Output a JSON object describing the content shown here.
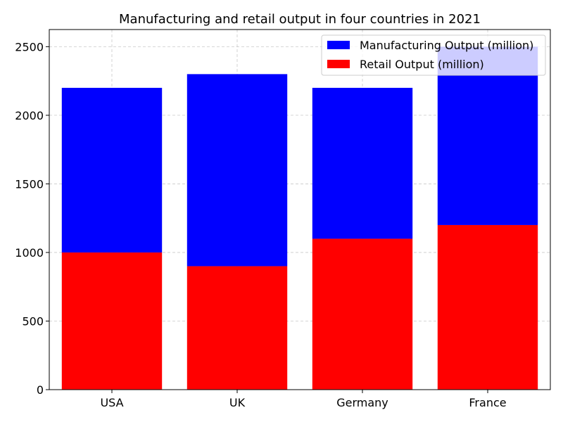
{
  "chart_data": {
    "type": "bar",
    "stacked": true,
    "title": "Manufacturing and retail output in four countries in 2021",
    "xlabel": "",
    "ylabel": "",
    "categories": [
      "USA",
      "UK",
      "Germany",
      "France"
    ],
    "series": [
      {
        "name": "Retail Output (million)",
        "color": "#ff0000",
        "values": [
          1000,
          900,
          1100,
          1200
        ]
      },
      {
        "name": "Manufacturing Output (million)",
        "color": "#0000ff",
        "values": [
          1200,
          1400,
          1100,
          1300
        ]
      }
    ],
    "legend_order": [
      "Manufacturing Output (million)",
      "Retail Output (million)"
    ],
    "ylim": [
      0,
      2625
    ],
    "yticks": [
      0,
      500,
      1000,
      1500,
      2000,
      2500
    ],
    "grid": true,
    "legend_position": "top-right"
  }
}
